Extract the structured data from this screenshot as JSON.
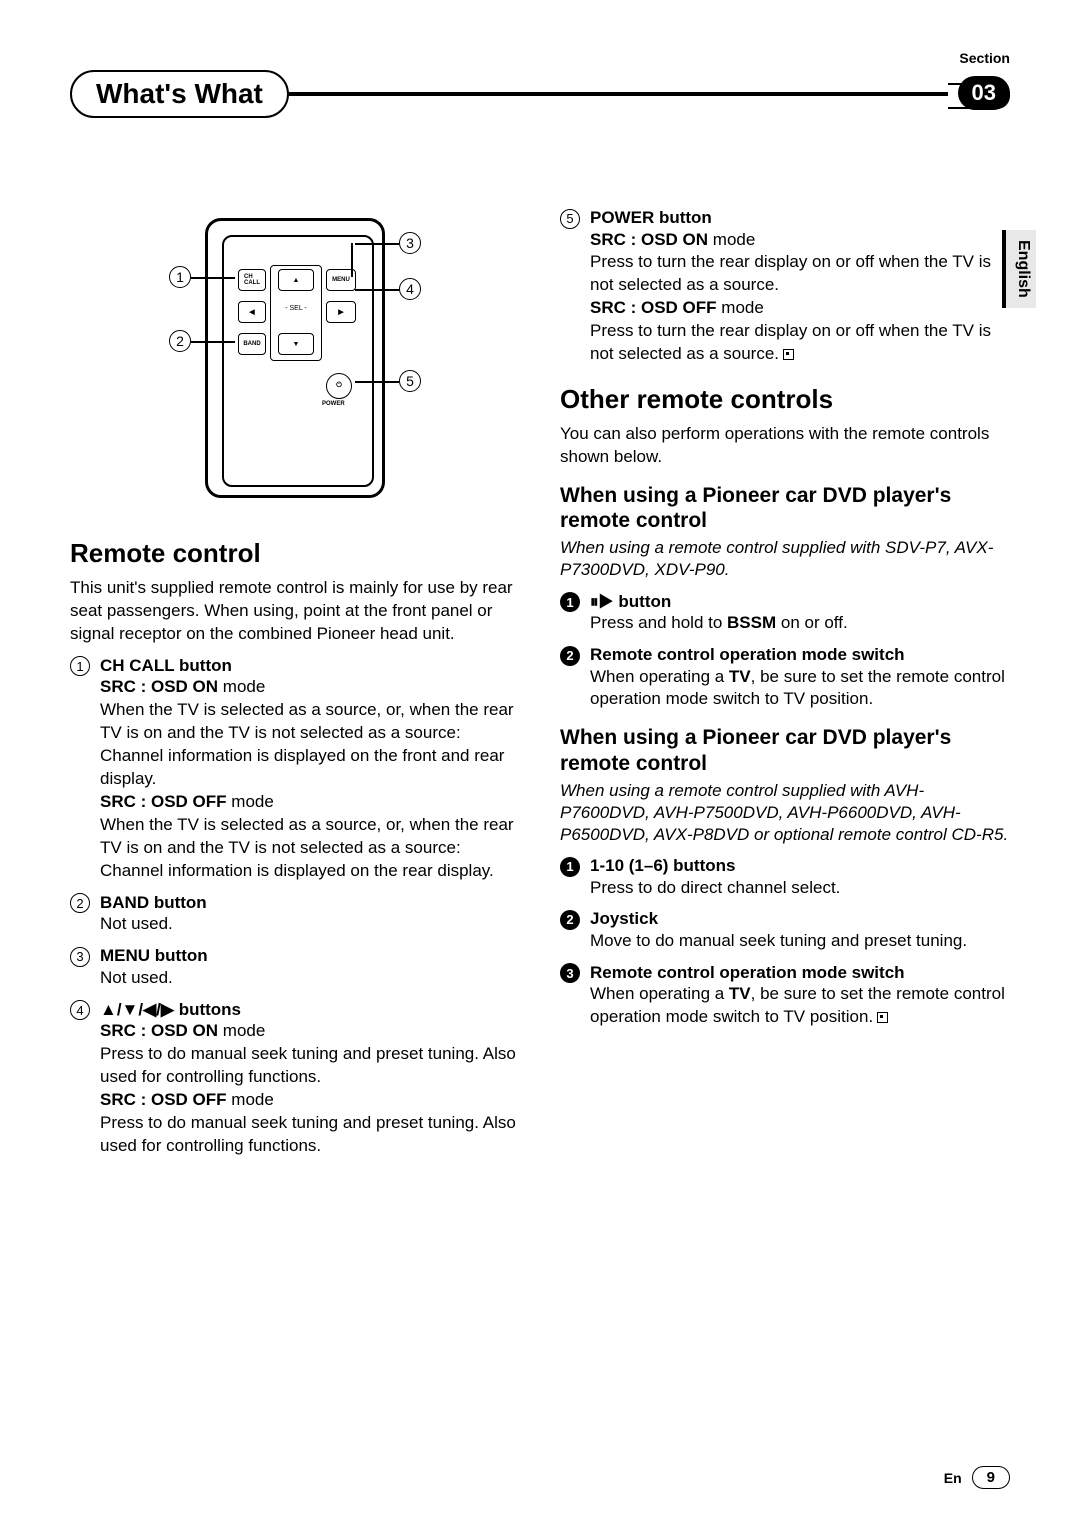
{
  "header": {
    "section_label": "Section",
    "chapter_number": "03",
    "title": "What's What",
    "language_tab": "English"
  },
  "remote_diagram": {
    "callouts": [
      "1",
      "2",
      "3",
      "4",
      "5"
    ],
    "btn_chcall": "CH\nCALL",
    "btn_menu": "MENU",
    "btn_band": "BAND",
    "btn_sel": "SEL",
    "btn_power": "POWER"
  },
  "left": {
    "heading": "Remote control",
    "intro": "This unit's supplied remote control is mainly for use by rear seat passengers. When using, point at the front panel or signal receptor on the combined Pioneer head unit.",
    "items": [
      {
        "num": "1",
        "title": "CH CALL button",
        "blocks": [
          {
            "mode": "SRC : OSD ON",
            "mode_tail": " mode",
            "text": "When the TV is selected as a source, or, when the rear TV is on and the TV is not selected as a source:\nChannel information is displayed on the front and rear display."
          },
          {
            "mode": "SRC : OSD OFF",
            "mode_tail": " mode",
            "text": "When the TV is selected as a source, or, when the rear TV is on and the TV is not selected as a source:\nChannel information is displayed on the rear display."
          }
        ]
      },
      {
        "num": "2",
        "title": "BAND button",
        "blocks": [
          {
            "text": "Not used."
          }
        ]
      },
      {
        "num": "3",
        "title": "MENU button",
        "blocks": [
          {
            "text": "Not used."
          }
        ]
      },
      {
        "num": "4",
        "title": "▲/▼/◀/▶ buttons",
        "blocks": [
          {
            "mode": "SRC : OSD ON",
            "mode_tail": " mode",
            "text": "Press to do manual seek tuning and preset tuning. Also used for controlling functions."
          },
          {
            "mode": "SRC : OSD OFF",
            "mode_tail": " mode",
            "text": "Press to do manual seek tuning and preset tuning. Also used for controlling functions."
          }
        ]
      }
    ]
  },
  "right": {
    "power_item": {
      "num": "5",
      "title": "POWER button",
      "blocks": [
        {
          "mode": "SRC : OSD ON",
          "mode_tail": " mode",
          "text": "Press to turn the rear display on or off when the TV is not selected as a source."
        },
        {
          "mode": "SRC : OSD OFF",
          "mode_tail": " mode",
          "text": "Press to turn the rear display on or off when the TV is not selected as a source.",
          "end": true
        }
      ]
    },
    "other_heading": "Other remote controls",
    "other_intro": "You can also perform operations with the remote controls shown below.",
    "group1": {
      "heading": "When using a Pioneer car DVD player's remote control",
      "italic": "When using a remote control supplied with SDV-P7, AVX-P7300DVD, XDV-P90.",
      "items": [
        {
          "num": "1",
          "title": "⏸▶ button",
          "text": "Press and hold to BSSM on or off.",
          "bold_inline": "BSSM"
        },
        {
          "num": "2",
          "title": "Remote control operation mode switch",
          "text": "When operating a TV, be sure to set the remote control operation mode switch to TV position.",
          "bold_inline": "TV"
        }
      ]
    },
    "group2": {
      "heading": "When using a Pioneer car DVD player's remote control",
      "italic": "When using a remote control supplied with AVH-P7600DVD, AVH-P7500DVD, AVH-P6600DVD, AVH-P6500DVD, AVX-P8DVD or optional remote control CD-R5.",
      "items": [
        {
          "num": "1",
          "title": "1-10 (1–6) buttons",
          "text": "Press to do direct channel select."
        },
        {
          "num": "2",
          "title": "Joystick",
          "text": "Move to do manual seek tuning and preset tuning."
        },
        {
          "num": "3",
          "title": "Remote control operation mode switch",
          "text": "When operating a TV, be sure to set the remote control operation mode switch to TV position.",
          "bold_inline": "TV",
          "end": true
        }
      ]
    }
  },
  "footer": {
    "lang_code": "En",
    "page": "9"
  }
}
